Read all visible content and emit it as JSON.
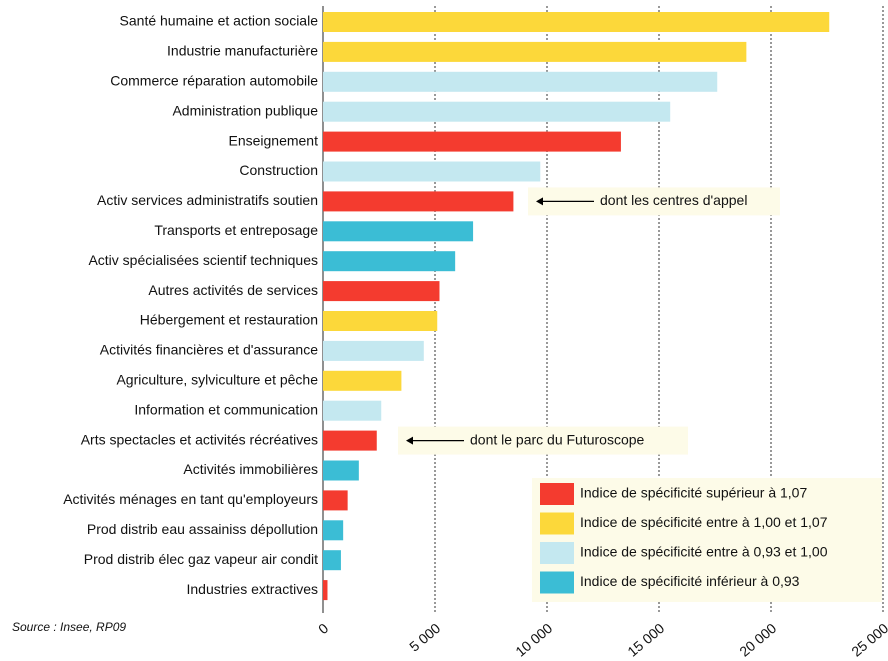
{
  "chart_data": {
    "type": "hbar",
    "categories": [
      "Santé humaine et action sociale",
      "Industrie manufacturière",
      "Commerce réparation automobile",
      "Administration publique",
      "Enseignement",
      "Construction",
      "Activ services administratifs soutien",
      "Transports et entreposage",
      "Activ spécialisées scientif techniques",
      "Autres activités de services",
      "Hébergement et restauration",
      "Activités financières et d'assurance",
      "Agriculture, sylviculture et pêche",
      "Information et communication",
      "Arts spectacles et activités récréatives",
      "Activités immobilières",
      "Activités ménages en tant qu'employeurs",
      "Prod distrib eau assainiss dépollution",
      "Prod distrib élec gaz vapeur air condit",
      "Industries extractives"
    ],
    "values": [
      22600,
      18900,
      17600,
      15500,
      13300,
      9700,
      8500,
      6700,
      5900,
      5200,
      5100,
      4500,
      3500,
      2600,
      2400,
      1600,
      1100,
      900,
      800,
      200
    ],
    "colors": [
      "#fcd83a",
      "#fcd83a",
      "#c4e8f0",
      "#c4e8f0",
      "#f43b2f",
      "#c4e8f0",
      "#f43b2f",
      "#3bbdd5",
      "#3bbdd5",
      "#f43b2f",
      "#fcd83a",
      "#c4e8f0",
      "#fcd83a",
      "#c4e8f0",
      "#f43b2f",
      "#3bbdd5",
      "#f43b2f",
      "#3bbdd5",
      "#3bbdd5",
      "#f43b2f"
    ],
    "xlim": [
      0,
      25000
    ],
    "xticks": [
      0,
      {
        "value": 5000,
        "label": "5 000"
      },
      {
        "value": 10000,
        "label": "10 000"
      },
      {
        "value": 15000,
        "label": "15 000"
      },
      {
        "value": 20000,
        "label": "20 000"
      },
      {
        "value": 25000,
        "label": "25 000"
      }
    ],
    "grid": true,
    "legend": [
      {
        "label": "Indice de spécificité supérieur à 1,07",
        "color": "#f43b2f"
      },
      {
        "label": "Indice de spécificité entre à 1,00 et 1,07",
        "color": "#fcd83a"
      },
      {
        "label": "Indice de spécificité entre à 0,93 et 1,00",
        "color": "#c4e8f0"
      },
      {
        "label": "Indice de spécificité inférieur à 0,93",
        "color": "#3bbdd5"
      }
    ],
    "annotations": [
      "dont les centres d'appel",
      "dont le parc du Futuroscope"
    ],
    "source": "Source : Insee, RP09"
  }
}
